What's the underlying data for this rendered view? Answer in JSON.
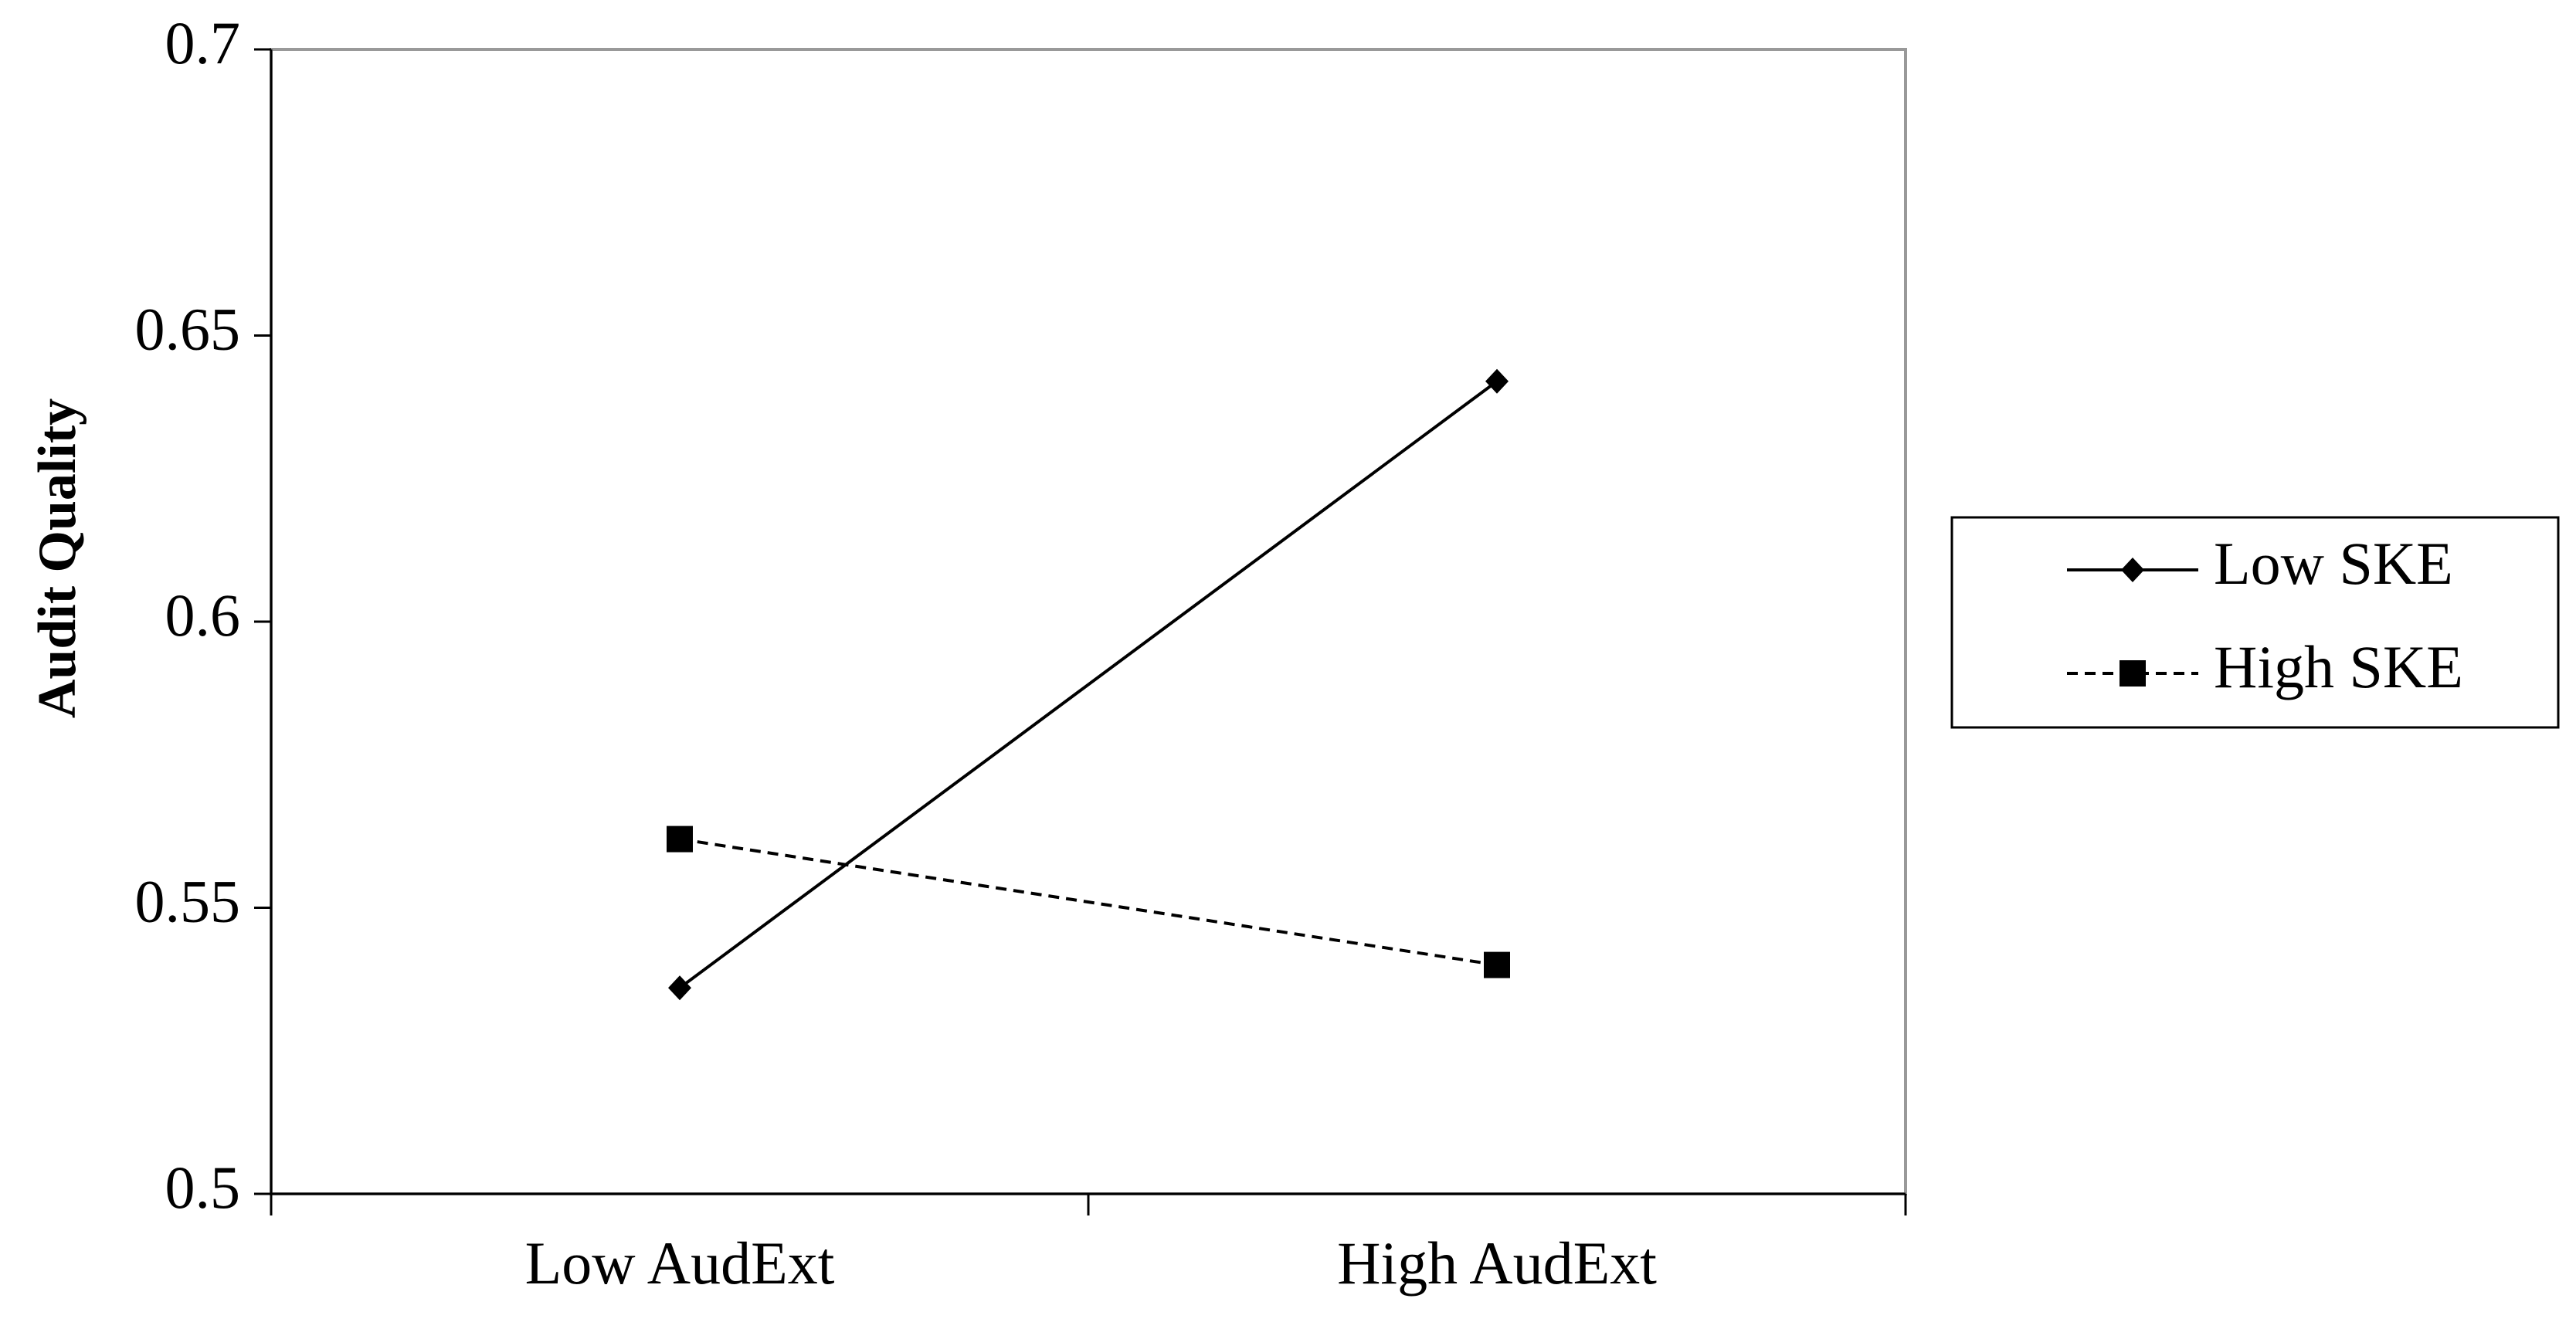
{
  "chart_data": {
    "type": "line",
    "y_label": "Audit  Quality",
    "categories": [
      "Low AudExt",
      "High AudExt"
    ],
    "series": [
      {
        "name": "Low SKE",
        "color": "#000000",
        "dash": "solid",
        "marker": "diamond",
        "values": [
          0.536,
          0.642
        ]
      },
      {
        "name": "High SKE",
        "color": "#000000",
        "dash": "dashed",
        "marker": "square",
        "values": [
          0.562,
          0.54
        ]
      }
    ],
    "ylim": [
      0.5,
      0.7
    ],
    "yticks": [
      0.5,
      0.55,
      0.6,
      0.65,
      0.7
    ],
    "grid": false,
    "legend": "right"
  }
}
